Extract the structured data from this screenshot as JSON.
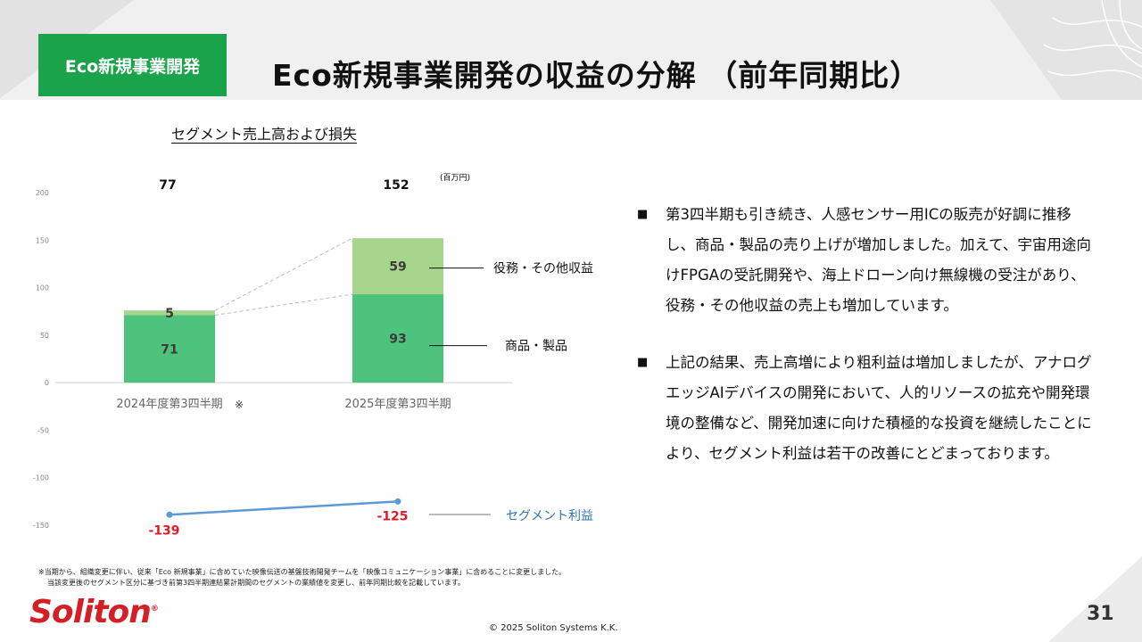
{
  "header": {
    "tag_label": "Eco新規事業開発",
    "title": "Eco新規事業開発の収益の分解 （前年同期比）"
  },
  "chart_heading": "セグメント売上高および損失",
  "unit_note": "(百万円)",
  "chart_data": {
    "type": "bar",
    "title": "セグメント売上高および損失",
    "categories": [
      "2024年度第3四半期",
      "2025年度第3四半期"
    ],
    "category_marks": [
      "※",
      ""
    ],
    "stacked": true,
    "ylim": [
      -150,
      200
    ],
    "yticks": [
      200,
      150,
      100,
      50,
      0,
      -50,
      -100,
      -150
    ],
    "grid": false,
    "series": [
      {
        "name": "商品・製品",
        "values": [
          71,
          93
        ],
        "color": "#4ec37e"
      },
      {
        "name": "役務・その他収益",
        "values": [
          5,
          59
        ],
        "color": "#a6d68b"
      }
    ],
    "totals": [
      77,
      152
    ],
    "line_series": {
      "name": "セグメント利益",
      "values": [
        -139,
        -125
      ],
      "color": "#5b9bd5",
      "label_color": "#e01b24"
    }
  },
  "bullets": [
    "第3四半期も引き続き、人感センサー用ICの販売が好調に推移し、商品・製品の売り上げが増加しました。加えて、宇宙用途向けFPGAの受託開発や、海上ドローン向け無線機の受注があり、役務・その他収益の売上も増加しています。",
    "上記の結果、売上高増により粗利益は増加しましたが、アナログエッジAIデバイスの開発において、人的リソースの拡充や開発環境の整備など、開発加速に向けた積極的な投資を継続したことにより、セグメント利益は若干の改善にとどまっております。"
  ],
  "bullet_mark": "■",
  "footnote": [
    "※当期から、組織変更に伴い、従来「Eco 新規事業」に含めていた映像伝送の基盤技術開発チームを「映像コミュニケーション事業」に含めることに変更しました。",
    "当該変更後のセグメント区分に基づき前第3四半期連結累計期間のセグメントの業績値を変更し、前年同期比較を記載しています。"
  ],
  "footer": {
    "logo_text": "Soliton",
    "logo_reg": "®",
    "copyright": "© 2025 Soliton Systems K.K.",
    "page_number": "31"
  }
}
